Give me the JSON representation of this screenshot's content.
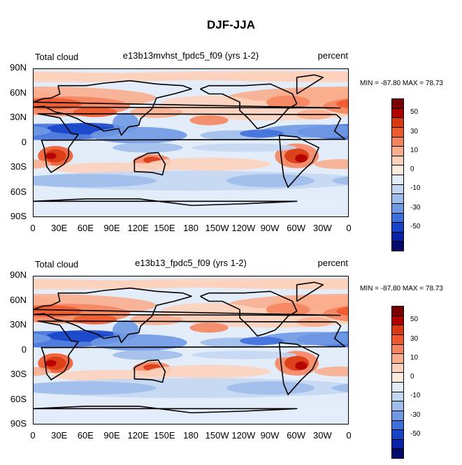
{
  "title": "DJF-JJA",
  "panels": [
    {
      "left_label": "Total cloud",
      "center_label": "e13b13mvhst_fpdc5_f09 (yrs 1-2)",
      "right_label": "percent",
      "minmax": "MIN = -87.80  MAX =  78.73"
    },
    {
      "left_label": "Total cloud",
      "center_label": "e13b13_fpdc5_f09 (yrs 1-2)",
      "right_label": "percent",
      "minmax": "MIN = -87.80  MAX =  78.73"
    }
  ],
  "lat_ticks": [
    "90N",
    "60N",
    "30N",
    "0",
    "30S",
    "60S",
    "90S"
  ],
  "lon_ticks": [
    "0",
    "30E",
    "60E",
    "90E",
    "120E",
    "150E",
    "180",
    "150W",
    "120W",
    "90W",
    "60W",
    "30W",
    "0"
  ],
  "colorbar": {
    "labels": [
      "50",
      "30",
      "10",
      "0",
      "-10",
      "-30",
      "-50"
    ],
    "colors": [
      "#7a0000",
      "#b20000",
      "#d93a12",
      "#ee5a2e",
      "#f58560",
      "#f9ad8d",
      "#fcd1bc",
      "#fdebe0",
      "#e3edf9",
      "#c3d6f2",
      "#9ebdeb",
      "#6f99e3",
      "#3f6fda",
      "#1744c9",
      "#0a22a5",
      "#030a6e"
    ]
  }
}
